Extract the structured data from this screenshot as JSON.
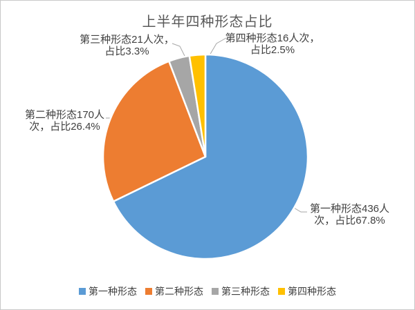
{
  "chart_data": {
    "type": "pie",
    "title": "上半年四种形态占比",
    "legend_position": "bottom",
    "grid": false,
    "slices": [
      {
        "name": "第一种形态",
        "count": 436,
        "percent": 67.8,
        "color": "#5B9BD5"
      },
      {
        "name": "第二种形态",
        "count": 170,
        "percent": 26.4,
        "color": "#ED7D31"
      },
      {
        "name": "第三种形态",
        "count": 21,
        "percent": 3.3,
        "color": "#A6A6A6"
      },
      {
        "name": "第四种形态",
        "count": 16,
        "percent": 2.5,
        "color": "#FFC000"
      }
    ],
    "data_labels": [
      {
        "line1": "第一种形态436人",
        "line2": "次，占比67.8%"
      },
      {
        "line1": "第二种形态170人",
        "line2": "次，占比26.4%"
      },
      {
        "line1": "第三种形态21人次，",
        "line2": "占比3.3%"
      },
      {
        "line1": "第四种形态16人次，",
        "line2": "占比2.5%"
      }
    ],
    "legend": [
      "第一种形态",
      "第二种形态",
      "第三种形态",
      "第四种形态"
    ]
  },
  "colors": {
    "title_text": "#595959",
    "label_text": "#404040",
    "leader_line": "#A6A6A6",
    "slice_border": "#FFFFFF",
    "frame_border": "#C8C8C8"
  }
}
